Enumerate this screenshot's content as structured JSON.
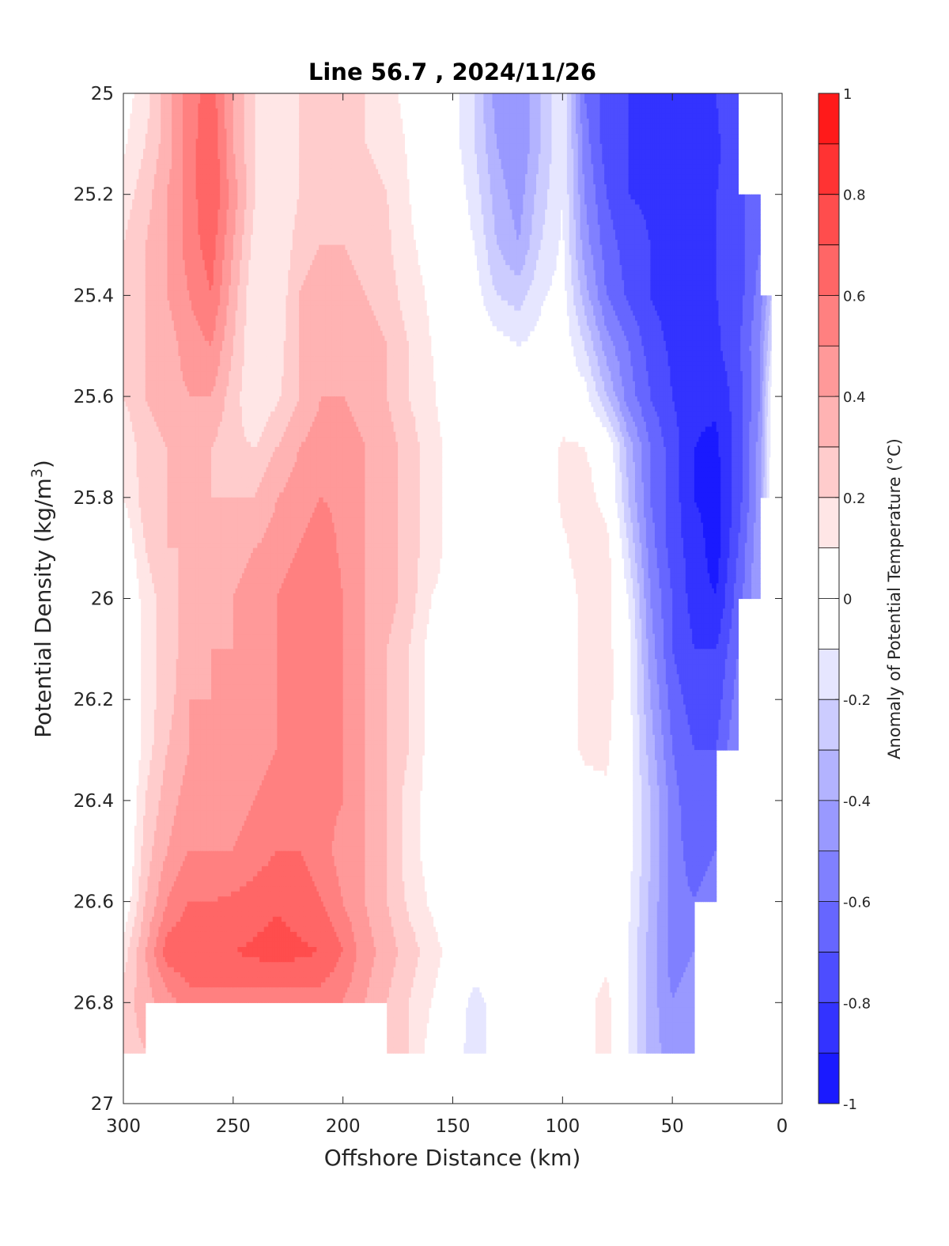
{
  "chart_data": {
    "type": "heatmap",
    "title": "Line 56.7 , 2024/11/26",
    "xlabel": "Offshore Distance (km)",
    "ylabel_main": "Potential Density (kg/m",
    "ylabel_sup": "3",
    "ylabel_close": ")",
    "colorbar_label": "Anomaly of Potential Temperature (°C)",
    "xlim": [
      300,
      0
    ],
    "ylim": [
      25,
      27
    ],
    "x_reversed": true,
    "y_reversed": true,
    "x_ticks": [
      300,
      250,
      200,
      150,
      100,
      50,
      0
    ],
    "x_tick_labels": [
      "300",
      "250",
      "200",
      "150",
      "100",
      "50",
      "0"
    ],
    "y_ticks": [
      25,
      25.2,
      25.4,
      25.6,
      25.8,
      26,
      26.2,
      26.4,
      26.6,
      26.8,
      27
    ],
    "y_tick_labels": [
      "25",
      "25.2",
      "25.4",
      "25.6",
      "25.8",
      "26",
      "26.2",
      "26.4",
      "26.6",
      "26.8",
      "27"
    ],
    "colorbar": {
      "range": [
        -1,
        1
      ],
      "ticks": [
        1,
        0.8,
        0.6,
        0.4,
        0.2,
        0,
        -0.2,
        -0.4,
        -0.6,
        -0.8,
        -1
      ],
      "tick_labels": [
        "1",
        "0.8",
        "0.6",
        "0.4",
        "0.2",
        "0",
        "-0.2",
        "-0.4",
        "-0.6",
        "-0.8",
        "-1"
      ],
      "levels_step": 0.1,
      "colors_low_to_high": [
        "#0000ff",
        "#1a1aff",
        "#3333ff",
        "#4d4dff",
        "#6666ff",
        "#8080ff",
        "#9999ff",
        "#b3b3ff",
        "#ccccff",
        "#e6e6ff",
        "#ffffff",
        "#ffffff",
        "#ffe6e6",
        "#ffcccc",
        "#ffb3b3",
        "#ff9999",
        "#ff8080",
        "#ff6666",
        "#ff4d4d",
        "#ff3333",
        "#ff1a1a",
        "#ff0000"
      ]
    },
    "distance_km": [
      300,
      290,
      280,
      270,
      260,
      250,
      240,
      230,
      220,
      210,
      200,
      190,
      180,
      170,
      160,
      150,
      140,
      130,
      120,
      110,
      100,
      90,
      80,
      70,
      60,
      50,
      40,
      30,
      20,
      10,
      5
    ],
    "density": [
      25.0,
      25.1,
      25.2,
      25.3,
      25.4,
      25.5,
      25.6,
      25.7,
      25.8,
      25.9,
      26.0,
      26.1,
      26.2,
      26.3,
      26.4,
      26.5,
      26.6,
      26.7,
      26.8,
      26.9
    ],
    "anomaly": [
      [
        0.05,
        0.15,
        0.35,
        0.55,
        0.65,
        0.4,
        0.2,
        0.1,
        0.2,
        0.2,
        0.2,
        0.2,
        0.15,
        0.05,
        0.0,
        -0.05,
        -0.2,
        -0.45,
        -0.5,
        -0.3,
        -0.1,
        -0.6,
        -0.75,
        -0.8,
        -0.85,
        -0.85,
        -0.85,
        -0.8,
        -0.7,
        null,
        null
      ],
      [
        0.08,
        0.2,
        0.35,
        0.55,
        0.7,
        0.4,
        0.2,
        0.1,
        0.2,
        0.2,
        0.2,
        0.2,
        0.18,
        0.08,
        0.0,
        -0.05,
        -0.2,
        -0.4,
        -0.5,
        -0.3,
        -0.1,
        -0.55,
        -0.75,
        -0.8,
        -0.85,
        -0.9,
        -0.85,
        -0.82,
        -0.72,
        null,
        null
      ],
      [
        0.15,
        0.25,
        0.4,
        0.55,
        0.7,
        0.45,
        0.2,
        0.1,
        0.2,
        0.22,
        0.22,
        0.22,
        0.2,
        0.1,
        0.02,
        -0.02,
        -0.15,
        -0.35,
        -0.45,
        -0.25,
        -0.1,
        -0.5,
        -0.7,
        -0.8,
        -0.82,
        -0.88,
        -0.85,
        -0.8,
        -0.75,
        -0.6,
        null
      ],
      [
        0.2,
        0.3,
        0.4,
        0.55,
        0.65,
        0.4,
        0.15,
        0.1,
        0.25,
        0.3,
        0.3,
        0.25,
        0.22,
        0.12,
        0.05,
        0.0,
        -0.1,
        -0.3,
        -0.4,
        -0.2,
        -0.08,
        -0.45,
        -0.65,
        -0.75,
        -0.8,
        -0.85,
        -0.85,
        -0.8,
        -0.75,
        -0.6,
        null
      ],
      [
        0.22,
        0.3,
        0.4,
        0.5,
        0.6,
        0.35,
        0.1,
        0.12,
        0.3,
        0.35,
        0.35,
        0.3,
        0.25,
        0.15,
        0.08,
        0.0,
        -0.05,
        -0.2,
        -0.25,
        -0.12,
        -0.05,
        -0.35,
        -0.6,
        -0.72,
        -0.8,
        -0.85,
        -0.85,
        -0.8,
        -0.75,
        -0.55,
        -0.3
      ],
      [
        0.22,
        0.3,
        0.35,
        0.45,
        0.5,
        0.3,
        0.1,
        0.15,
        0.3,
        0.35,
        0.4,
        0.35,
        0.3,
        0.2,
        0.1,
        0.02,
        0.0,
        -0.05,
        -0.1,
        -0.05,
        -0.02,
        -0.2,
        -0.45,
        -0.6,
        -0.75,
        -0.82,
        -0.85,
        -0.82,
        -0.72,
        -0.5,
        -0.2
      ],
      [
        0.2,
        0.3,
        0.35,
        0.4,
        0.4,
        0.25,
        0.1,
        0.18,
        0.3,
        0.4,
        0.4,
        0.35,
        0.3,
        0.2,
        0.12,
        0.02,
        0.0,
        0.0,
        0.0,
        0.0,
        0.0,
        -0.05,
        -0.3,
        -0.55,
        -0.7,
        -0.8,
        -0.88,
        -0.88,
        -0.75,
        -0.5,
        -0.05
      ],
      [
        0.12,
        0.25,
        0.3,
        0.3,
        0.3,
        0.22,
        0.2,
        0.3,
        0.4,
        0.45,
        0.45,
        0.4,
        0.35,
        0.25,
        0.15,
        0.05,
        0.0,
        0.0,
        0.0,
        0.02,
        0.12,
        0.1,
        0.02,
        -0.35,
        -0.6,
        -0.75,
        -0.9,
        -0.92,
        -0.75,
        -0.45,
        -0.05
      ],
      [
        0.1,
        0.25,
        0.3,
        0.3,
        0.3,
        0.3,
        0.3,
        0.4,
        0.45,
        0.5,
        0.48,
        0.4,
        0.35,
        0.25,
        0.15,
        0.05,
        0.0,
        0.0,
        0.0,
        0.0,
        0.12,
        0.15,
        0.05,
        -0.3,
        -0.6,
        -0.75,
        -0.9,
        -0.95,
        -0.75,
        -0.45,
        0.0
      ],
      [
        0.0,
        0.2,
        0.3,
        0.3,
        0.3,
        0.35,
        0.4,
        0.45,
        0.5,
        0.55,
        0.48,
        0.4,
        0.35,
        0.25,
        0.15,
        0.05,
        0.0,
        0.0,
        0.0,
        0.0,
        0.08,
        0.15,
        0.15,
        -0.2,
        -0.55,
        -0.75,
        -0.85,
        -0.95,
        -0.7,
        -0.4,
        null
      ],
      [
        -0.05,
        0.15,
        0.25,
        0.35,
        0.35,
        0.4,
        0.45,
        0.5,
        0.55,
        0.6,
        0.5,
        0.4,
        0.35,
        0.25,
        0.1,
        0.05,
        0.0,
        0.0,
        0.0,
        0.0,
        0.05,
        0.12,
        0.15,
        -0.1,
        -0.5,
        -0.7,
        -0.85,
        -0.9,
        -0.65,
        -0.4,
        null
      ],
      [
        -0.1,
        0.15,
        0.25,
        0.35,
        0.4,
        0.4,
        0.45,
        0.5,
        0.55,
        0.55,
        0.5,
        0.4,
        0.3,
        0.2,
        0.05,
        0.0,
        0.0,
        0.0,
        0.0,
        0.0,
        0.05,
        0.12,
        0.15,
        -0.05,
        -0.45,
        -0.7,
        -0.8,
        -0.8,
        -0.6,
        null,
        null
      ],
      [
        -0.1,
        0.15,
        0.25,
        0.4,
        0.4,
        0.4,
        0.45,
        0.5,
        0.55,
        0.55,
        0.5,
        0.4,
        0.3,
        0.2,
        0.05,
        0.0,
        0.0,
        0.0,
        0.0,
        0.0,
        0.05,
        0.12,
        0.15,
        -0.05,
        -0.4,
        -0.65,
        -0.75,
        -0.75,
        -0.55,
        null,
        null
      ],
      [
        -0.1,
        0.15,
        0.3,
        0.4,
        0.4,
        0.4,
        0.45,
        0.5,
        0.55,
        0.55,
        0.5,
        0.4,
        0.3,
        0.2,
        0.05,
        0.0,
        0.0,
        0.0,
        0.0,
        0.0,
        0.05,
        0.12,
        0.12,
        -0.05,
        -0.35,
        -0.6,
        -0.7,
        -0.7,
        -0.5,
        null,
        null
      ],
      [
        -0.05,
        0.2,
        0.35,
        0.45,
        0.45,
        0.45,
        0.5,
        0.55,
        0.55,
        0.55,
        0.5,
        0.4,
        0.3,
        0.15,
        0.05,
        0.0,
        0.0,
        0.0,
        0.0,
        0.0,
        0.02,
        0.05,
        0.08,
        -0.05,
        -0.3,
        -0.55,
        -0.7,
        -0.65,
        null,
        null,
        null
      ],
      [
        -0.05,
        0.25,
        0.4,
        0.5,
        0.5,
        0.5,
        0.55,
        0.6,
        0.6,
        0.55,
        0.45,
        0.4,
        0.3,
        0.15,
        0.05,
        -0.05,
        0.0,
        0.0,
        0.0,
        0.0,
        0.0,
        0.02,
        0.05,
        -0.05,
        -0.3,
        -0.55,
        -0.65,
        -0.6,
        null,
        null,
        null
      ],
      [
        0.0,
        0.3,
        0.5,
        0.6,
        0.6,
        0.62,
        0.65,
        0.68,
        0.65,
        0.6,
        0.5,
        0.4,
        0.3,
        0.18,
        0.08,
        0.0,
        0.0,
        0.0,
        0.0,
        0.0,
        0.0,
        0.02,
        0.05,
        -0.08,
        -0.32,
        -0.55,
        -0.6,
        -0.55,
        null,
        null,
        null
      ],
      [
        0.15,
        0.4,
        0.65,
        0.7,
        0.7,
        0.7,
        0.72,
        0.75,
        0.72,
        0.7,
        0.6,
        0.45,
        0.35,
        0.25,
        0.15,
        0.05,
        0.0,
        0.0,
        0.0,
        0.02,
        0.05,
        0.05,
        0.05,
        -0.1,
        -0.35,
        -0.55,
        -0.5,
        null,
        null,
        null,
        null
      ],
      [
        0.25,
        0.35,
        0.45,
        0.55,
        0.55,
        0.55,
        0.55,
        0.55,
        0.55,
        0.55,
        0.5,
        0.4,
        0.3,
        0.2,
        0.1,
        0.0,
        -0.15,
        -0.05,
        0.0,
        0.0,
        0.0,
        0.05,
        0.15,
        -0.1,
        -0.35,
        -0.5,
        -0.45,
        null,
        null,
        null,
        null
      ],
      [
        0.25,
        0.3,
        null,
        null,
        null,
        null,
        null,
        null,
        null,
        null,
        null,
        null,
        0.3,
        0.2,
        0.05,
        -0.05,
        -0.15,
        -0.05,
        0.0,
        0.0,
        0.0,
        0.05,
        0.15,
        -0.1,
        -0.35,
        -0.45,
        -0.45,
        null,
        null,
        null,
        null
      ]
    ]
  }
}
